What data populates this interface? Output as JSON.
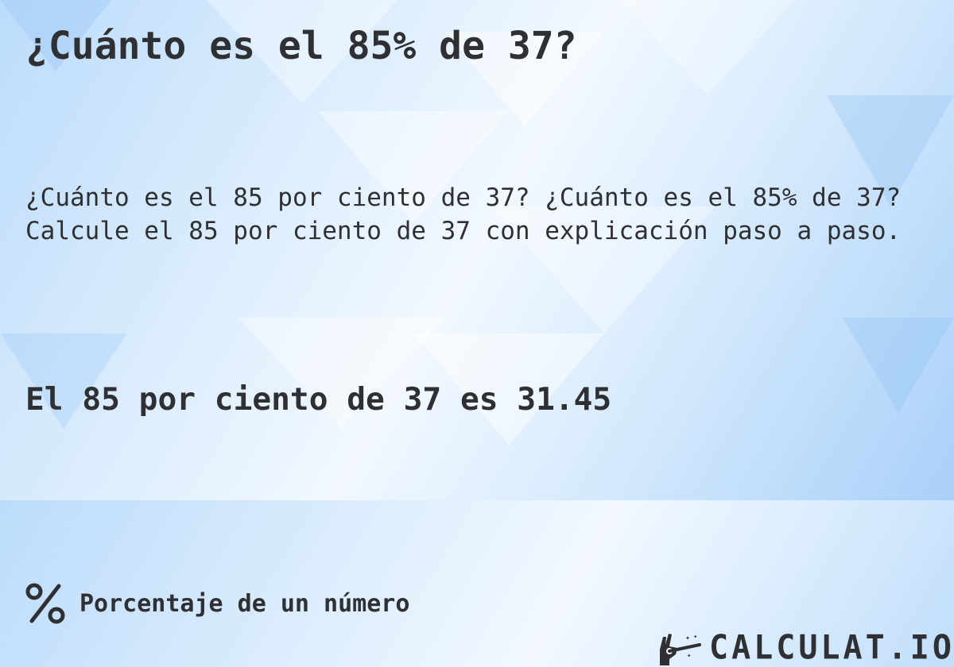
{
  "title": "¿Cuánto es el 85% de 37?",
  "description": {
    "line1": "¿Cuánto es el 85 por ciento de 37? ¿Cuánto es el 85% de 37?",
    "line2": "Calcule el 85 por ciento de 37 con explicación paso a paso."
  },
  "result": "El 85 por ciento de 37 es 31.45",
  "footer": {
    "icon": "percent-icon",
    "category": "Porcentaje de un número"
  },
  "logo": {
    "icon": "magic-hand-wand-icon",
    "text": "CALCULAT.IO"
  },
  "colors": {
    "text": "#2f3033",
    "background_light": "#f2f8fe",
    "background_blue": "#a9d0f8"
  }
}
